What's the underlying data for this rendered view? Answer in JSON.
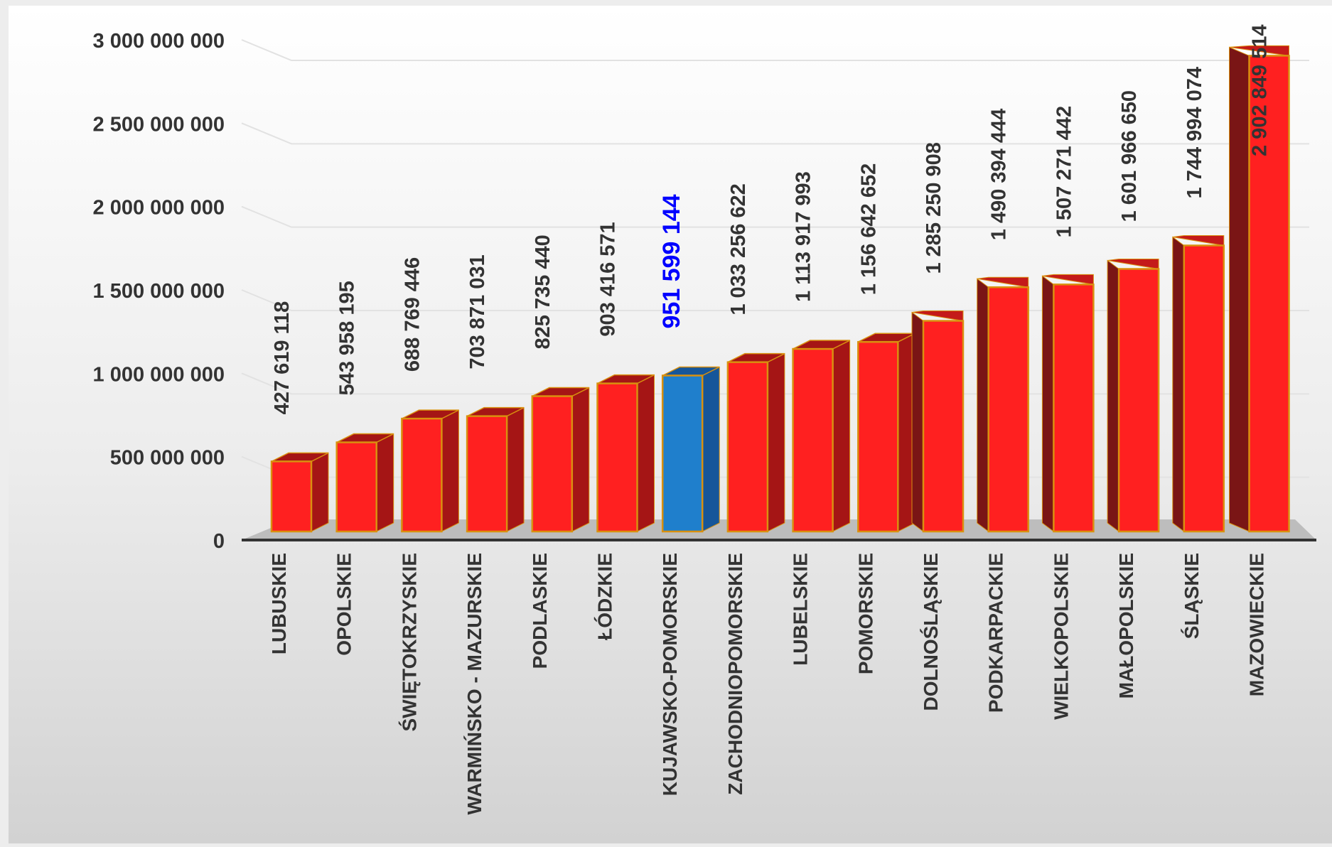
{
  "chart_data": {
    "type": "bar",
    "three_d": true,
    "title": "",
    "xlabel": "",
    "ylabel": "",
    "ylim": [
      0,
      3000000000
    ],
    "yticks": [
      0,
      500000000,
      1000000000,
      1500000000,
      2000000000,
      2500000000,
      3000000000
    ],
    "ytick_labels": [
      "0",
      "500 000 000",
      "1 000 000 000",
      "1 500 000 000",
      "2 000 000 000",
      "2 500 000 000",
      "3 000 000 000"
    ],
    "grid": true,
    "legend": "none",
    "categories": [
      "LUBUSKIE",
      "OPOLSKIE",
      "ŚWIĘTOKRZYSKIE",
      "WARMIŃSKO - MAZURSKIE",
      "PODLASKIE",
      "ŁÓDZKIE",
      "KUJAWSKO-POMORSKIE",
      "ZACHODNIOPOMORSKIE",
      "LUBELSKIE",
      "POMORSKIE",
      "DOLNOŚLĄSKIE",
      "PODKARPACKIE",
      "WIELKOPOLSKIE",
      "MAŁOPOLSKIE",
      "ŚLĄSKIE",
      "MAZOWIECKIE"
    ],
    "values": [
      427619118,
      543958195,
      688769446,
      703871031,
      825735440,
      903416571,
      951599144,
      1033256622,
      1113917993,
      1156642652,
      1285250908,
      1490394444,
      1507271442,
      1601966650,
      1744994074,
      2902849514
    ],
    "value_labels": [
      "427 619 118",
      "543 958 195",
      "688 769 446",
      "703 871 031",
      "825 735 440",
      "903 416 571",
      "951 599 144",
      "1 033 256 622",
      "1 113 917 993",
      "1 156 642 652",
      "1 285 250 908",
      "1 490 394 444",
      "1 507 271 442",
      "1 601 966 650",
      "1 744 994 074",
      "2 902 849 514"
    ],
    "highlight_index": 6,
    "colors": {
      "bar": "#ff2020",
      "bar_border": "#d9900f",
      "bar_side": "#a51515",
      "highlight_bar": "#1f7fcc",
      "highlight_side": "#16569a",
      "highlight_label": "#0000ff",
      "label": "#333333",
      "floor": "#bdbdbd",
      "axis": "#333333"
    }
  }
}
